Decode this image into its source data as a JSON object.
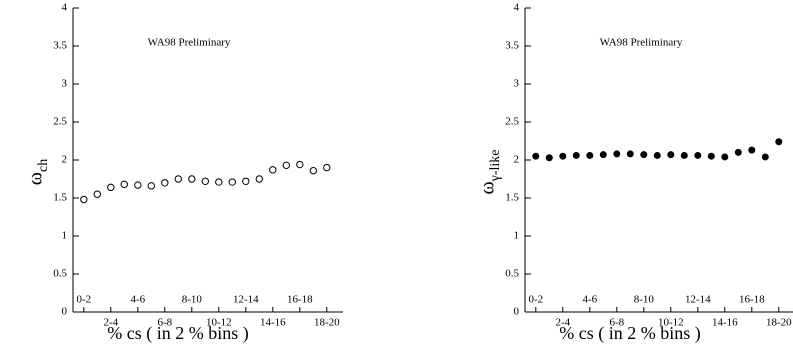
{
  "chart_data": [
    {
      "type": "scatter",
      "annotation": "WA98 Preliminary",
      "ylabel": "ω",
      "ylabel_sub": "ch",
      "xlabel": "% cs ( in 2 % bins )",
      "marker": "open",
      "color": "#000000",
      "x": [
        1,
        2,
        3,
        4,
        5,
        6,
        7,
        8,
        9,
        10,
        11,
        12,
        13,
        14,
        15,
        16,
        17,
        18,
        19
      ],
      "values": [
        1.48,
        1.55,
        1.64,
        1.68,
        1.67,
        1.66,
        1.7,
        1.75,
        1.75,
        1.72,
        1.71,
        1.71,
        1.72,
        1.75,
        1.87,
        1.93,
        1.94,
        1.86,
        1.9
      ],
      "xlim": [
        0.2,
        20.2
      ],
      "ylim": [
        0,
        4
      ],
      "yticks": [
        0,
        0.5,
        1,
        1.5,
        2,
        2.5,
        3,
        3.5,
        4
      ],
      "xticks": [
        {
          "value": 1,
          "label": "0-2"
        },
        {
          "value": 3,
          "label": "2-4"
        },
        {
          "value": 5,
          "label": "4-6"
        },
        {
          "value": 7,
          "label": "6-8"
        },
        {
          "value": 9,
          "label": "8-10"
        },
        {
          "value": 11,
          "label": "10-12"
        },
        {
          "value": 13,
          "label": "12-14"
        },
        {
          "value": 15,
          "label": "14-16"
        },
        {
          "value": 17,
          "label": "16-18"
        },
        {
          "value": 19,
          "label": "18-20"
        }
      ]
    },
    {
      "type": "scatter",
      "annotation": "WA98 Preliminary",
      "ylabel": "ω",
      "ylabel_sub": "γ-like",
      "xlabel": "% cs ( in 2 % bins )",
      "marker": "filled",
      "color": "#000000",
      "x": [
        1,
        2,
        3,
        4,
        5,
        6,
        7,
        8,
        9,
        10,
        11,
        12,
        13,
        14,
        15,
        16,
        17,
        18,
        19
      ],
      "values": [
        2.05,
        2.03,
        2.05,
        2.06,
        2.06,
        2.07,
        2.08,
        2.08,
        2.07,
        2.06,
        2.07,
        2.06,
        2.06,
        2.05,
        2.04,
        2.1,
        2.13,
        2.04,
        2.24
      ],
      "xlim": [
        0.2,
        20.2
      ],
      "ylim": [
        0,
        4
      ],
      "yticks": [
        0,
        0.5,
        1,
        1.5,
        2,
        2.5,
        3,
        3.5,
        4
      ],
      "xticks": [
        {
          "value": 1,
          "label": "0-2"
        },
        {
          "value": 3,
          "label": "2-4"
        },
        {
          "value": 5,
          "label": "4-6"
        },
        {
          "value": 7,
          "label": "6-8"
        },
        {
          "value": 9,
          "label": "8-10"
        },
        {
          "value": 11,
          "label": "10-12"
        },
        {
          "value": 13,
          "label": "12-14"
        },
        {
          "value": 15,
          "label": "14-16"
        },
        {
          "value": 17,
          "label": "16-18"
        },
        {
          "value": 19,
          "label": "18-20"
        }
      ]
    }
  ]
}
